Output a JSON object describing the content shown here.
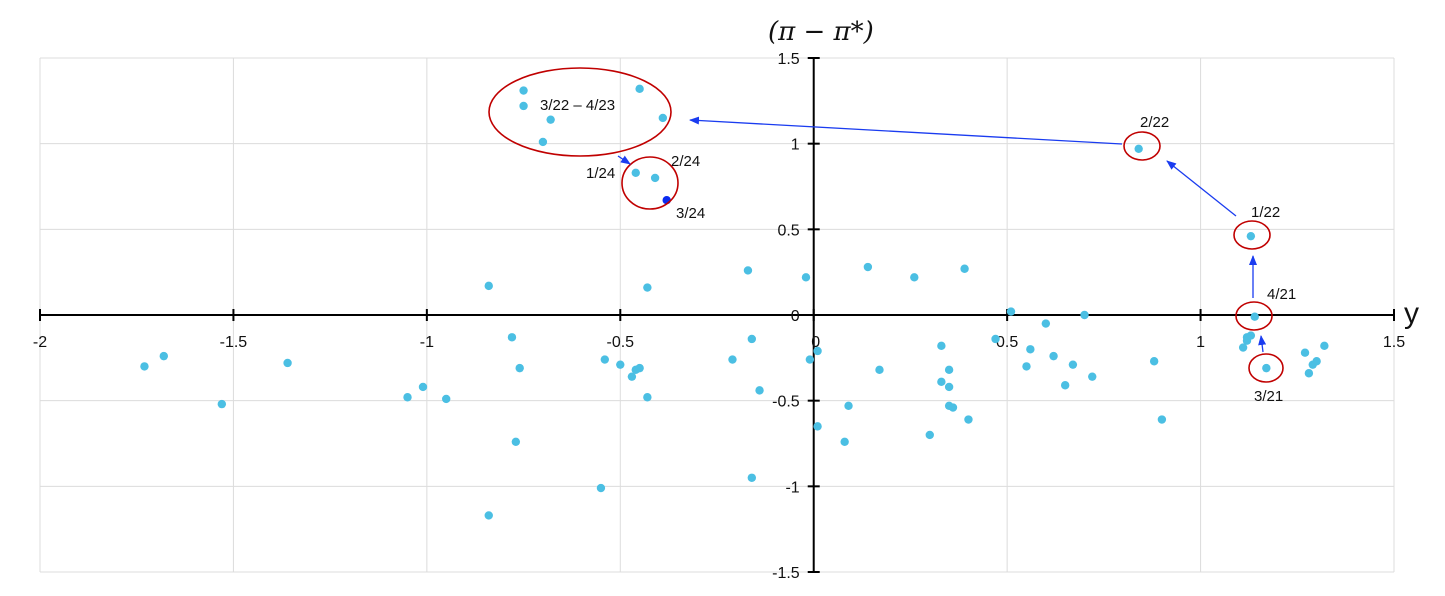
{
  "chart_data": {
    "type": "scatter",
    "title": "",
    "xlabel": "y",
    "ylabel": "(π − π*)",
    "xlim": [
      -2,
      1.5
    ],
    "ylim": [
      -1.5,
      1.5
    ],
    "x_ticks": [
      -2,
      -1.5,
      -1,
      -0.5,
      0,
      0.5,
      1,
      1.5
    ],
    "y_ticks": [
      -1.5,
      -1,
      -0.5,
      0,
      0.5,
      1,
      1.5
    ],
    "x_tick_labels": [
      "-2",
      "-1.5",
      "-1",
      "-0.5",
      "0",
      "0.5",
      "1",
      "1.5"
    ],
    "y_tick_labels": [
      "-1.5",
      "-1",
      "-0.5",
      "0",
      "0.5",
      "1",
      "1.5"
    ],
    "grid": true,
    "point_color": "#4bbfe3",
    "highlight_color": "#0a2bf0",
    "circle_color": "#c00000",
    "arrow_color": "#1a3cf0",
    "series": [
      {
        "name": "observations",
        "points": [
          [
            -1.73,
            -0.3
          ],
          [
            -1.68,
            -0.24
          ],
          [
            -1.53,
            -0.52
          ],
          [
            -1.36,
            -0.28
          ],
          [
            -1.05,
            -0.48
          ],
          [
            -1.01,
            -0.42
          ],
          [
            -0.95,
            -0.49
          ],
          [
            -0.84,
            0.17
          ],
          [
            -0.84,
            -1.17
          ],
          [
            -0.78,
            -0.13
          ],
          [
            -0.76,
            -0.31
          ],
          [
            -0.77,
            -0.74
          ],
          [
            -0.55,
            -1.01
          ],
          [
            -0.54,
            -0.26
          ],
          [
            -0.5,
            -0.29
          ],
          [
            -0.47,
            -0.36
          ],
          [
            -0.46,
            -0.32
          ],
          [
            -0.45,
            -0.31
          ],
          [
            -0.43,
            0.16
          ],
          [
            -0.43,
            -0.48
          ],
          [
            -0.17,
            0.26
          ],
          [
            -0.21,
            -0.26
          ],
          [
            -0.16,
            -0.14
          ],
          [
            -0.16,
            -0.95
          ],
          [
            -0.14,
            -0.44
          ],
          [
            -0.02,
            0.22
          ],
          [
            -0.01,
            -0.26
          ],
          [
            0.01,
            -0.21
          ],
          [
            0.01,
            -0.65
          ],
          [
            0.08,
            -0.74
          ],
          [
            0.09,
            -0.53
          ],
          [
            0.14,
            0.28
          ],
          [
            0.17,
            -0.32
          ],
          [
            0.26,
            0.22
          ],
          [
            0.3,
            -0.7
          ],
          [
            0.33,
            -0.18
          ],
          [
            0.33,
            -0.39
          ],
          [
            0.35,
            -0.32
          ],
          [
            0.35,
            -0.42
          ],
          [
            0.35,
            -0.53
          ],
          [
            0.36,
            -0.54
          ],
          [
            0.39,
            0.27
          ],
          [
            0.4,
            -0.61
          ],
          [
            0.47,
            -0.14
          ],
          [
            0.51,
            0.02
          ],
          [
            0.55,
            -0.3
          ],
          [
            0.56,
            -0.2
          ],
          [
            0.6,
            -0.05
          ],
          [
            0.62,
            -0.24
          ],
          [
            0.65,
            -0.41
          ],
          [
            0.67,
            -0.29
          ],
          [
            0.7,
            0.0
          ],
          [
            0.72,
            -0.36
          ],
          [
            0.88,
            -0.27
          ],
          [
            0.9,
            -0.61
          ],
          [
            1.11,
            -0.19
          ],
          [
            1.12,
            -0.15
          ],
          [
            1.12,
            -0.13
          ],
          [
            1.13,
            -0.12
          ],
          [
            1.27,
            -0.22
          ],
          [
            1.28,
            -0.34
          ],
          [
            1.29,
            -0.29
          ],
          [
            1.3,
            -0.27
          ],
          [
            1.32,
            -0.18
          ]
        ]
      },
      {
        "name": "highlighted_path",
        "points": [
          {
            "label": "3/21",
            "x": 1.17,
            "y": -0.31
          },
          {
            "label": "4/21",
            "x": 1.14,
            "y": -0.01
          },
          {
            "label": "1/22",
            "x": 1.13,
            "y": 0.46
          },
          {
            "label": "2/22",
            "x": 0.84,
            "y": 0.97
          },
          {
            "label": "3/22 – 4/23",
            "points": [
              [
                -0.75,
                1.31
              ],
              [
                -0.75,
                1.22
              ],
              [
                -0.68,
                1.14
              ],
              [
                -0.7,
                1.01
              ],
              [
                -0.45,
                1.32
              ],
              [
                -0.39,
                1.15
              ]
            ]
          },
          {
            "label": "1/24",
            "x": -0.46,
            "y": 0.83
          },
          {
            "label": "2/24",
            "x": -0.41,
            "y": 0.8
          },
          {
            "label": "3/24",
            "x": -0.38,
            "y": 0.67,
            "emphasized": true
          }
        ]
      }
    ],
    "annotations": [
      {
        "text": "3/21",
        "x": 1.17,
        "y": -0.31,
        "circled": true
      },
      {
        "text": "4/21",
        "x": 1.14,
        "y": -0.01,
        "circled": true
      },
      {
        "text": "1/22",
        "x": 1.13,
        "y": 0.46,
        "circled": true
      },
      {
        "text": "2/22",
        "x": 0.84,
        "y": 0.97,
        "circled": true
      },
      {
        "text": "3/22 – 4/23",
        "x": -0.57,
        "y": 1.2,
        "circled": true
      },
      {
        "text": "1/24",
        "x": -0.46,
        "y": 0.83,
        "circled": true
      },
      {
        "text": "2/24",
        "x": -0.41,
        "y": 0.8,
        "circled": true
      },
      {
        "text": "3/24",
        "x": -0.38,
        "y": 0.67,
        "circled": true
      }
    ],
    "arrows": [
      {
        "from": "3/21",
        "to": "4/21"
      },
      {
        "from": "4/21",
        "to": "1/22"
      },
      {
        "from": "1/22",
        "to": "2/22"
      },
      {
        "from": "2/22",
        "to": "3/22 – 4/23"
      },
      {
        "from": "3/22 – 4/23",
        "to": "1/24"
      }
    ]
  },
  "labels": {
    "y_axis_title": "(π − π*)",
    "x_axis_title": "y",
    "annot_3_21": "3/21",
    "annot_4_21": "4/21",
    "annot_1_22": "1/22",
    "annot_2_22": "2/22",
    "annot_cluster": "3/22 – 4/23",
    "annot_1_24": "1/24",
    "annot_2_24": "2/24",
    "annot_3_24": "3/24"
  }
}
